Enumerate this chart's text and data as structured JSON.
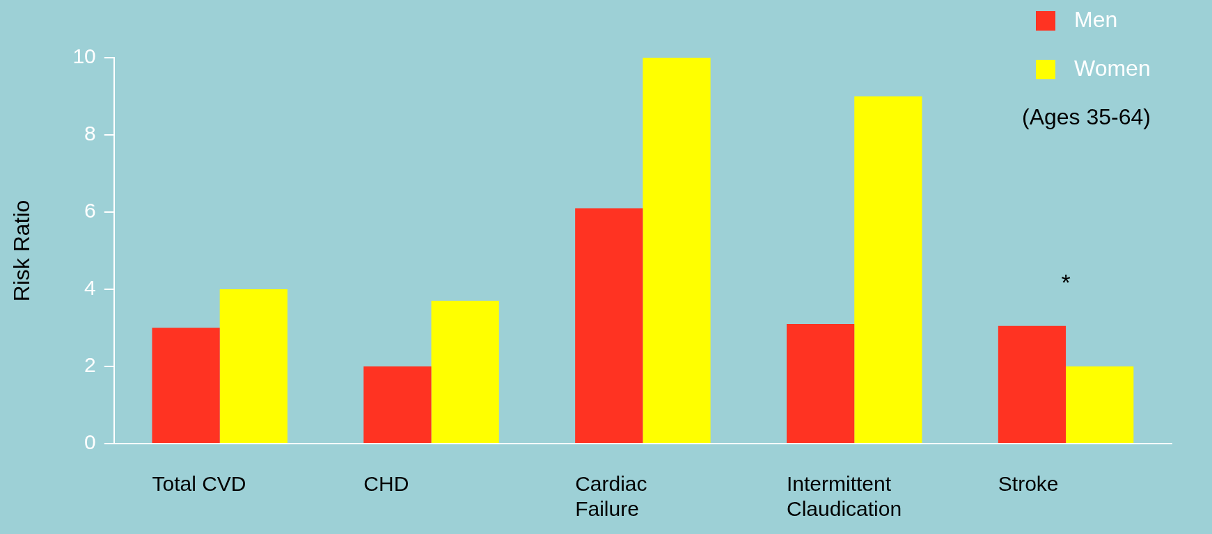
{
  "chart_data": {
    "type": "bar",
    "ylabel": "Risk Ratio",
    "categories": [
      "Total CVD",
      "CHD",
      "Cardiac Failure",
      "Intermittent Claudication",
      "Stroke"
    ],
    "series": [
      {
        "name": "Men",
        "color": "#ff3322",
        "values": [
          3.0,
          2.0,
          6.1,
          3.1,
          3.05
        ]
      },
      {
        "name": "Women",
        "color": "#ffff00",
        "values": [
          4.0,
          3.7,
          10.0,
          9.0,
          2.0
        ]
      }
    ],
    "ylim": [
      0,
      10
    ],
    "yticks": [
      0,
      2,
      4,
      6,
      8,
      10
    ],
    "grid": false,
    "legend": "top right",
    "annotations": [
      "(Ages 35-64)",
      "*"
    ]
  }
}
